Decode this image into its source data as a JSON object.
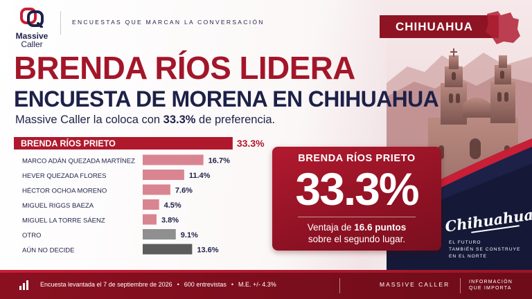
{
  "brand": {
    "name": "Massive",
    "sub": "Caller",
    "tagline": "ENCUESTAS QUE MARCAN LA CONVERSACIÓN"
  },
  "state_badge": "CHIHUAHUA",
  "headline": {
    "line1": "BRENDA RÍOS LIDERA",
    "line2": "ENCUESTA DE MORENA EN CHIHUAHUA",
    "sub_prefix": "Massive Caller la coloca con ",
    "sub_value": "33.3%",
    "sub_suffix": " de preferencia."
  },
  "colors": {
    "leader": "#b0182c",
    "candidates": "#d98591",
    "otro": "#8f8f8f",
    "undecided": "#5c5c5c",
    "navy": "#1d2148"
  },
  "chart_data": {
    "type": "bar",
    "orientation": "horizontal",
    "categories": [
      "BRENDA RÍOS PRIETO",
      "MARCO ADÁN QUEZADA MARTÍNEZ",
      "HEVER QUEZADA FLORES",
      "HÉCTOR OCHOA MORENO",
      "MIGUEL RIGGS BAEZA",
      "MIGUEL LA TORRE SÁENZ",
      "OTRO",
      "AÚN NO DECIDE"
    ],
    "values": [
      33.3,
      16.7,
      11.4,
      7.6,
      4.5,
      3.8,
      9.1,
      13.6
    ],
    "labels": [
      "33.3%",
      "16.7%",
      "11.4%",
      "7.6%",
      "4.5%",
      "3.8%",
      "9.1%",
      "13.6%"
    ],
    "unit": "%",
    "grid": false
  },
  "highlight": {
    "name": "BRENDA RÍOS PRIETO",
    "value": "33.3%",
    "lead_prefix": "Ventaja de ",
    "lead_value": "16.6 puntos",
    "lead_suffix": "sobre el segundo lugar."
  },
  "slogan": {
    "script": "Chihuahua",
    "line1": "EL FUTURO",
    "line2": "TAMBIÉN SE CONSTRUYE",
    "line3": "EN EL NORTE"
  },
  "footer": {
    "date": "Encuesta levantada el 7 de septiembre de 2026",
    "sample": "600 entrevistas",
    "margin": "M.E. +/- 4.3%",
    "bullet": "•",
    "brand": "MASSIVE CALLER",
    "claim_line1": "INFORMACIÓN",
    "claim_line2": "QUE IMPORTA"
  },
  "icons": {
    "logo": "massive-caller-logo",
    "map": "chihuahua-map-icon",
    "footer": "bar-chart-icon"
  }
}
